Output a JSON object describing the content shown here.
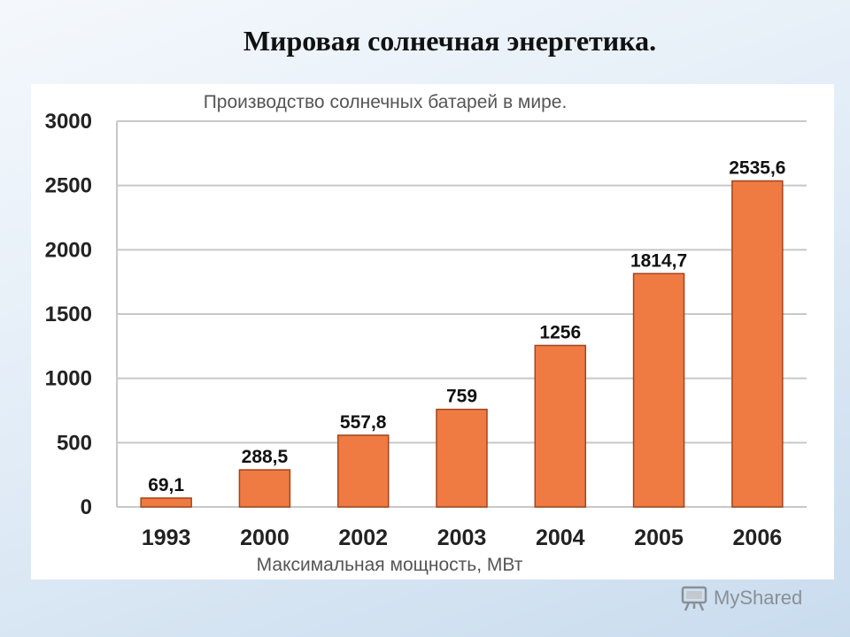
{
  "slide": {
    "title": "Мировая солнечная энергетика."
  },
  "watermark": {
    "text": "MyShared",
    "icon": "presentation-board-icon"
  },
  "chart_data": {
    "type": "bar",
    "title": "Производство солнечных батарей в мире.",
    "xlabel": "Максимальная мощность, МВт",
    "ylabel": "",
    "categories": [
      "1993",
      "2000",
      "2002",
      "2003",
      "2004",
      "2005",
      "2006"
    ],
    "values": [
      69.1,
      288.5,
      557.8,
      759,
      1256,
      1814.7,
      2535.6
    ],
    "value_labels": [
      "69,1",
      "288,5",
      "557,8",
      "759",
      "1256",
      "1814,7",
      "2535,6"
    ],
    "ylim": [
      0,
      3000
    ],
    "yticks": [
      0,
      500,
      1000,
      1500,
      2000,
      2500,
      3000
    ],
    "grid": true,
    "legend": "none",
    "colors": {
      "bar": "#ef7b43",
      "bar_border": "#a3441c",
      "grid": "#c8c8c8",
      "axis_text": "#222222"
    }
  }
}
